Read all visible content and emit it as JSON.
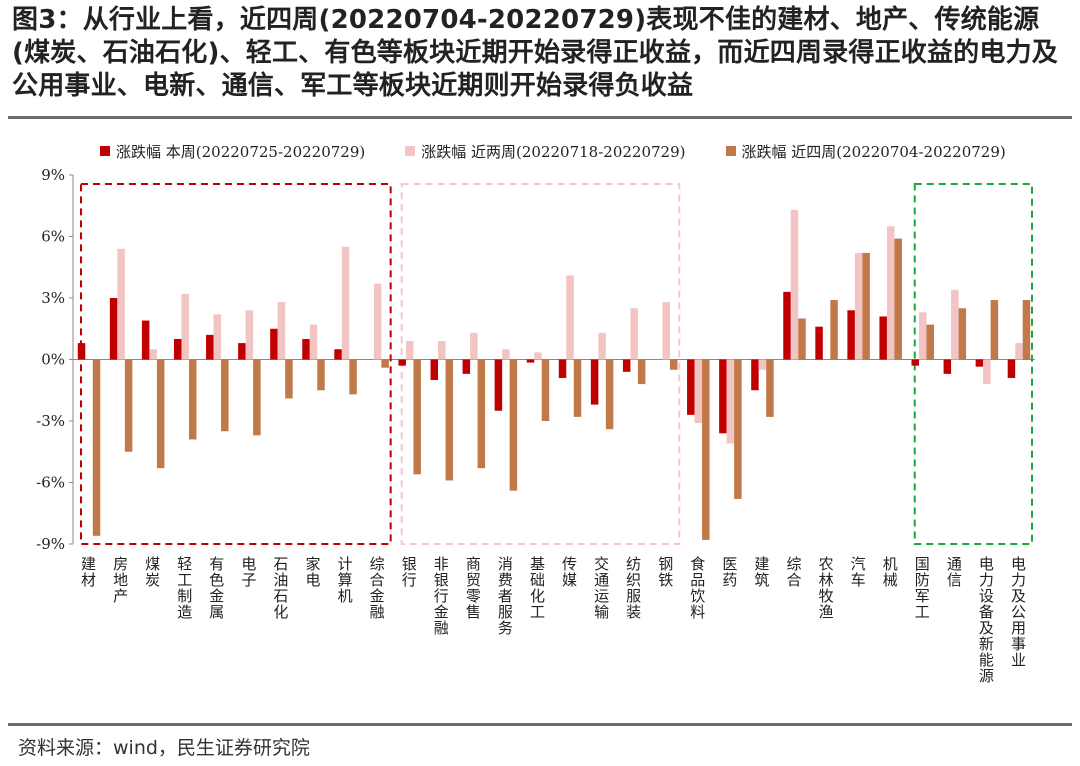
{
  "title": "图3：从行业上看，近四周(20220704-20220729)表现不佳的建材、地产、传统能源(煤炭、石油石化)、轻工、有色等板块近期开始录得正收益，而近四周录得正收益的电力及公用事业、电新、通信、军工等板块近期则开始录得负收益",
  "source": "资料来源：wind，民生证券研究院",
  "colors": {
    "s1": "#c00000",
    "s2": "#f2c4c4",
    "s3": "#c07a4a",
    "red_box": "#c00000",
    "pink_box": "#f4c7cf",
    "green_box": "#1aa83c",
    "axis": "#888888"
  },
  "chart_data": {
    "type": "bar",
    "ylim": [
      -9,
      9
    ],
    "yticks": [
      "9%",
      "6%",
      "3%",
      "0%",
      "-3%",
      "-6%",
      "-9%"
    ],
    "categories": [
      "建材",
      "房地产",
      "煤炭",
      "轻工制造",
      "有色金属",
      "电子",
      "石油石化",
      "家电",
      "计算机",
      "综合金融",
      "银行",
      "非银行金融",
      "商贸零售",
      "消费者服务",
      "基础化工",
      "传媒",
      "交通运输",
      "纺织服装",
      "钢铁",
      "食品饮料",
      "医药",
      "建筑",
      "综合",
      "农林牧渔",
      "汽车",
      "机械",
      "国防军工",
      "通信",
      "电力设备及新能源",
      "电力及公用事业"
    ],
    "series": [
      {
        "name": "涨跌幅 本周(20220725-20220729)",
        "values": [
          0.8,
          3.0,
          1.9,
          1.0,
          1.2,
          0.8,
          1.5,
          1.0,
          0.5,
          0.0,
          -0.3,
          -1.0,
          -0.7,
          -2.5,
          -0.15,
          -0.9,
          -2.2,
          -0.6,
          0.0,
          -2.7,
          -3.6,
          -1.5,
          3.3,
          1.6,
          2.4,
          2.1,
          -0.3,
          -0.7,
          -0.35,
          -0.9
        ]
      },
      {
        "name": "涨跌幅 近两周(20220718-20220729)",
        "values": [
          0.0,
          5.4,
          0.5,
          3.2,
          2.2,
          2.4,
          2.8,
          1.7,
          5.5,
          3.7,
          0.9,
          0.9,
          1.3,
          0.5,
          0.35,
          4.1,
          1.3,
          2.5,
          2.8,
          -3.1,
          -4.1,
          -0.5,
          7.3,
          0.0,
          5.2,
          6.5,
          2.3,
          3.4,
          -1.2,
          0.8
        ]
      },
      {
        "name": "涨跌幅 近四周(20220704-20220729)",
        "values": [
          -8.6,
          -4.5,
          -5.3,
          -3.9,
          -3.5,
          -3.7,
          -1.9,
          -1.5,
          -1.7,
          -0.4,
          -5.6,
          -5.9,
          -5.3,
          -6.4,
          -3.0,
          -2.8,
          -3.4,
          -1.2,
          -0.5,
          -8.8,
          -6.8,
          -2.8,
          2.0,
          2.9,
          5.2,
          5.9,
          1.7,
          2.5,
          2.9,
          2.9
        ]
      }
    ],
    "highlight_boxes": [
      {
        "from": "建材",
        "to": "综合金融",
        "color": "red"
      },
      {
        "from": "银行",
        "to": "钢铁",
        "color": "pink"
      },
      {
        "from": "国防军工",
        "to": "电力及公用事业",
        "color": "green"
      }
    ]
  }
}
